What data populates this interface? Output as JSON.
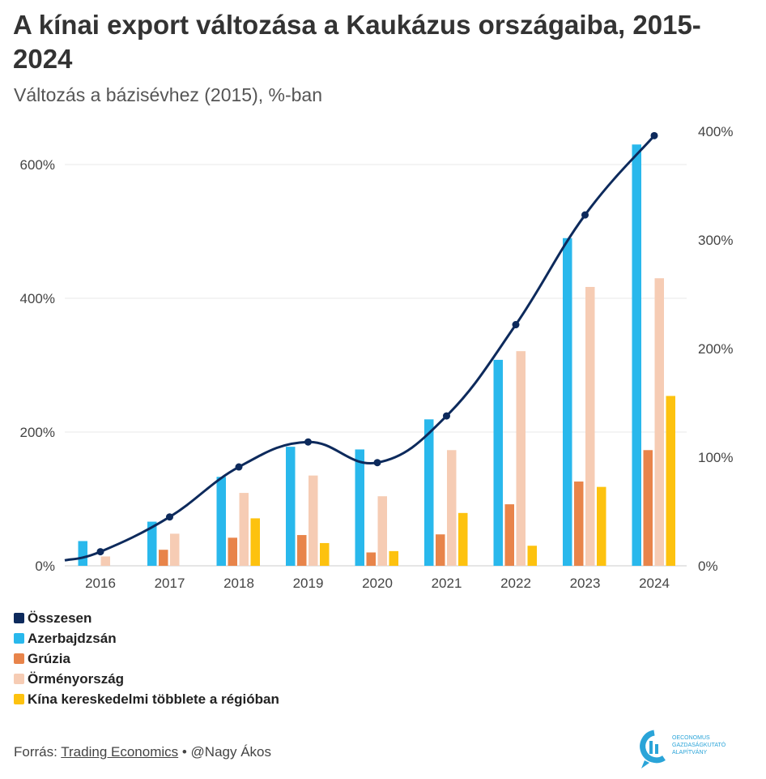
{
  "title": "A kínai export változása a Kaukázus országaiba, 2015-2024",
  "subtitle": "Változás a bázisévhez (2015), %-ban",
  "colors": {
    "total": "#0d2a5c",
    "azerbaijan": "#29b8ec",
    "georgia": "#e8844a",
    "armenia": "#f6ccb4",
    "surplus": "#fdc20f",
    "grid": "#e8e8e8",
    "axis_text": "#444444"
  },
  "chart_data": {
    "type": "bar",
    "categories": [
      "2016",
      "2017",
      "2018",
      "2019",
      "2020",
      "2021",
      "2022",
      "2023",
      "2024"
    ],
    "left_axis": {
      "ticks": [
        "0%",
        "200%",
        "400%",
        "600%"
      ],
      "range": [
        0,
        650
      ]
    },
    "right_axis": {
      "ticks": [
        "0%",
        "100%",
        "200%",
        "300%",
        "400%"
      ],
      "range": [
        0,
        406
      ]
    },
    "series": [
      {
        "name": "Azerbajdzsán",
        "type": "bar",
        "axis": "left",
        "values": [
          37,
          66,
          133,
          178,
          174,
          219,
          308,
          490,
          630
        ]
      },
      {
        "name": "Grúzia",
        "type": "bar",
        "axis": "left",
        "values": [
          0,
          24,
          42,
          46,
          20,
          47,
          92,
          126,
          173
        ]
      },
      {
        "name": "Örményország",
        "type": "bar",
        "axis": "left",
        "values": [
          14,
          48,
          109,
          135,
          104,
          173,
          321,
          417,
          430
        ]
      },
      {
        "name": "Kína kereskedelmi többlete a régióban",
        "type": "bar",
        "axis": "left",
        "values": [
          0,
          0,
          71,
          34,
          22,
          79,
          30,
          118,
          254
        ]
      },
      {
        "name": "Összesen",
        "type": "line",
        "axis": "right",
        "values": [
          13,
          45,
          91,
          114,
          95,
          138,
          222,
          323,
          396
        ]
      }
    ],
    "legend_order": [
      "Összesen",
      "Azerbajdzsán",
      "Grúzia",
      "Örményország",
      "Kína kereskedelmi többlete a régióban"
    ],
    "legend_placement": "bottom-left",
    "grid": true
  },
  "footer": {
    "source_prefix": "Forrás:",
    "source_link": "Trading Economics",
    "separator": " • ",
    "author": "@Nagy Ákos"
  },
  "logo": {
    "lines": [
      "OECONOMUS",
      "GAZDASÁGKUTATÓ",
      "ALAPÍTVÁNY"
    ]
  }
}
